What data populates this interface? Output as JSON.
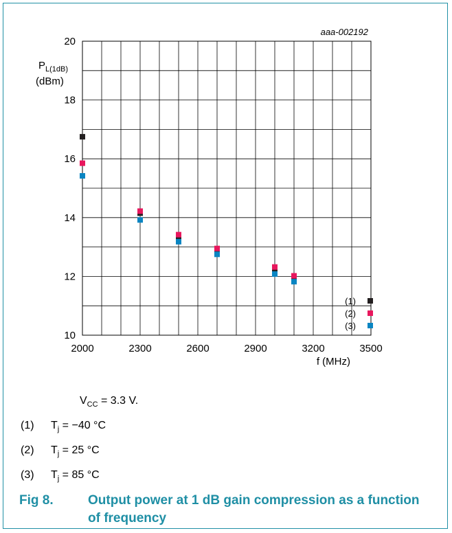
{
  "chart_data": {
    "type": "scatter",
    "figure_id": "aaa-002192",
    "ylabel_main": "P",
    "ylabel_sub": "L(1dB)",
    "ylabel_unit": "(dBm)",
    "xlabel": "f (MHz)",
    "xlim": [
      2000,
      3500
    ],
    "ylim": [
      10,
      20
    ],
    "x_ticks": [
      "2000",
      "2300",
      "2600",
      "2900",
      "3200",
      "3500"
    ],
    "y_ticks": [
      "20",
      "18",
      "16",
      "14",
      "12",
      "10"
    ],
    "grid": true,
    "legend_position": "bottom-right",
    "series": [
      {
        "name": "(1)",
        "color": "#231f20",
        "points": [
          [
            2000,
            16.75
          ],
          [
            2300,
            14.15
          ],
          [
            2500,
            13.35
          ],
          [
            2700,
            12.85
          ],
          [
            3000,
            12.25
          ],
          [
            3100,
            11.95
          ]
        ]
      },
      {
        "name": "(2)",
        "color": "#e8175d",
        "points": [
          [
            2000,
            15.85
          ],
          [
            2300,
            14.22
          ],
          [
            2500,
            13.42
          ],
          [
            2700,
            12.95
          ],
          [
            3000,
            12.32
          ],
          [
            3100,
            12.02
          ]
        ]
      },
      {
        "name": "(3)",
        "color": "#0a85c2",
        "points": [
          [
            2000,
            15.42
          ],
          [
            2300,
            13.92
          ],
          [
            2500,
            13.18
          ],
          [
            2700,
            12.75
          ],
          [
            3000,
            12.08
          ],
          [
            3100,
            11.82
          ]
        ]
      }
    ]
  },
  "notes": {
    "vcc": {
      "prefix": "V",
      "sub": "CC",
      "suffix": " = 3.3 V."
    },
    "items": [
      {
        "num": "(1)",
        "prefix": "T",
        "sub": "j",
        "suffix": " = −40 °C"
      },
      {
        "num": "(2)",
        "prefix": "T",
        "sub": "j",
        "suffix": " = 25 °C"
      },
      {
        "num": "(3)",
        "prefix": "T",
        "sub": "j",
        "suffix": " = 85 °C"
      }
    ]
  },
  "caption": {
    "figure": "Fig 8.",
    "text": "Output power at 1 dB gain compression as a function of frequency"
  }
}
